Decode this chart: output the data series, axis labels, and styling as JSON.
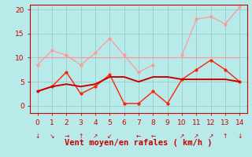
{
  "xlabel": "Vent moyen/en rafales ( km/h )",
  "xlim": [
    -0.5,
    14.5
  ],
  "ylim": [
    -1.5,
    21
  ],
  "yticks": [
    0,
    5,
    10,
    15,
    20
  ],
  "xticks": [
    0,
    1,
    2,
    3,
    4,
    5,
    6,
    7,
    8,
    9,
    10,
    11,
    12,
    13,
    14
  ],
  "bg_color": "#b8eaea",
  "grid_color": "#99cccc",
  "line1_x": [
    0,
    1,
    2,
    3,
    4,
    5,
    6,
    7,
    8,
    9,
    10,
    11,
    12,
    13,
    14
  ],
  "line1_y": [
    8.5,
    11.5,
    10.5,
    8.5,
    11.0,
    14.0,
    10.5,
    7.0,
    8.5,
    null,
    10.5,
    18.0,
    18.5,
    17.0,
    20.5
  ],
  "line1_color": "#ff9999",
  "line2_x": [
    0,
    14
  ],
  "line2_y": [
    10.0,
    10.0
  ],
  "line2_color": "#ff9999",
  "line3_x": [
    0,
    1,
    2,
    3,
    4,
    5,
    6,
    7,
    8,
    9,
    10,
    11,
    12,
    13,
    14
  ],
  "line3_y": [
    3.0,
    4.0,
    7.0,
    2.5,
    4.0,
    6.5,
    0.5,
    0.5,
    3.0,
    0.5,
    5.5,
    7.5,
    9.5,
    7.5,
    5.0
  ],
  "line3_color": "#ff2200",
  "line4_x": [
    0,
    1,
    2,
    3,
    4,
    5,
    6,
    7,
    8,
    9,
    10,
    11,
    12,
    13,
    14
  ],
  "line4_y": [
    3.0,
    4.0,
    4.5,
    4.0,
    4.5,
    6.0,
    6.0,
    5.0,
    6.0,
    6.0,
    5.5,
    5.5,
    5.5,
    5.5,
    5.0
  ],
  "line4_color": "#cc0000",
  "arrow_symbols": [
    "↓",
    "↘",
    "→",
    "↑",
    "↗",
    "↙",
    null,
    "←",
    "←",
    null,
    "↗",
    "↗",
    "↗",
    "↑",
    "↓"
  ],
  "tick_color": "#cc0000",
  "label_color": "#cc0000",
  "xlabel_fontsize": 7.5,
  "tick_fontsize": 6.5
}
